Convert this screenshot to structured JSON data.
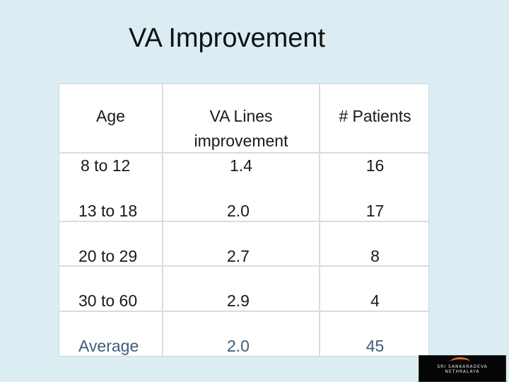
{
  "title": "VA Improvement",
  "table": {
    "headers": {
      "age": "Age",
      "va_line1": "VA Lines",
      "va_line2": "improvement",
      "patients": "# Patients"
    },
    "rows": [
      {
        "age": "8 to 12",
        "va": "1.4",
        "patients": "16"
      },
      {
        "age": "13 to 18",
        "va": "2.0",
        "patients": "17"
      },
      {
        "age": "20 to 29",
        "va": "2.7",
        "patients": "8"
      },
      {
        "age": "30 to 60",
        "va": "2.9",
        "patients": "4"
      },
      {
        "age": "Average",
        "va": "2.0",
        "patients": "45"
      }
    ]
  },
  "logo": {
    "line1": "SRI SANKARADEVA",
    "line2": "NETHRALAYA"
  },
  "colors": {
    "background": "#dcecf3",
    "average_text": "#3f5d7a",
    "logo_accent": "#e26b2a"
  }
}
